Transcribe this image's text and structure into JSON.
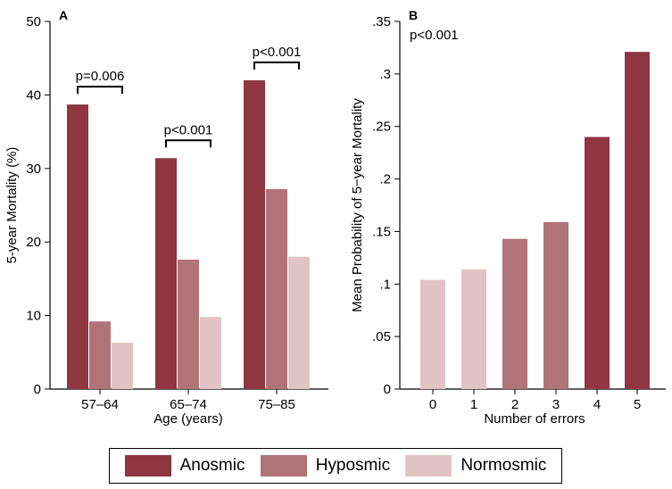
{
  "colors": {
    "anosmic": "#8f3641",
    "hyposmic": "#b07377",
    "normosmic": "#e2c3c5"
  },
  "legend": [
    {
      "name": "Anosmic",
      "color": "#8f3641"
    },
    {
      "name": "Hyposmic",
      "color": "#b07377"
    },
    {
      "name": "Normosmic",
      "color": "#e2c3c5"
    }
  ],
  "chart_data": [
    {
      "panel": "A",
      "type": "bar",
      "title": "",
      "xlabel": "Age (years)",
      "ylabel": "5-year Mortality (%)",
      "ylim": [
        0,
        50
      ],
      "yticks": [
        "0",
        "10",
        "20",
        "30",
        "40",
        "50"
      ],
      "categories": [
        "57–64",
        "65–74",
        "75–85"
      ],
      "series": [
        {
          "name": "Anosmic",
          "color": "#8f3641",
          "values": [
            38.7,
            31.4,
            42.0
          ]
        },
        {
          "name": "Hyposmic",
          "color": "#b07377",
          "values": [
            9.2,
            17.6,
            27.2
          ]
        },
        {
          "name": "Normosmic",
          "color": "#e2c3c5",
          "values": [
            6.3,
            9.8,
            18.0
          ]
        }
      ],
      "annotations": [
        "p=0.006",
        "p<0.001",
        "p<0.001"
      ]
    },
    {
      "panel": "B",
      "type": "bar",
      "title": "",
      "xlabel": "Number of errors",
      "ylabel": "Mean Probability of 5−year Mortality",
      "ylim": [
        0,
        0.35
      ],
      "yticks": [
        "0",
        ".05",
        ".1",
        ".15",
        ".2",
        ".25",
        ".3",
        ".35"
      ],
      "categories": [
        "0",
        "1",
        "2",
        "3",
        "4",
        "5"
      ],
      "values": [
        0.104,
        0.114,
        0.143,
        0.159,
        0.24,
        0.321
      ],
      "bar_groups": [
        "normosmic",
        "normosmic",
        "hyposmic",
        "hyposmic",
        "anosmic",
        "anosmic"
      ],
      "annotation": "p<0.001"
    }
  ]
}
